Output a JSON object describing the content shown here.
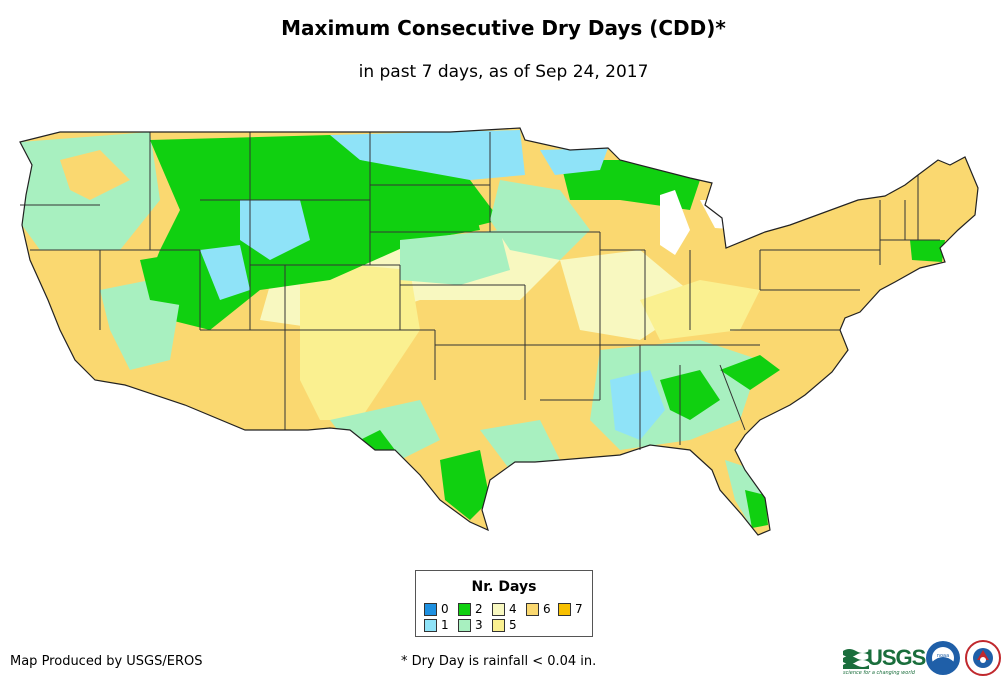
{
  "title": "Maximum Consecutive Dry Days (CDD)*",
  "subtitle": "in past 7 days, as of Sep 24, 2017",
  "legend": {
    "title": "Nr. Days",
    "items": [
      {
        "label": "0",
        "color": "#1e90e0"
      },
      {
        "label": "1",
        "color": "#8fe3f8"
      },
      {
        "label": "2",
        "color": "#10d010"
      },
      {
        "label": "3",
        "color": "#a8f0c0"
      },
      {
        "label": "4",
        "color": "#f8f8c0"
      },
      {
        "label": "5",
        "color": "#faf090"
      },
      {
        "label": "6",
        "color": "#fad870"
      },
      {
        "label": "7",
        "color": "#f8c000"
      }
    ]
  },
  "credit": "Map Produced by USGS/EROS",
  "footnote": "* Dry Day is rainfall < 0.04 in.",
  "logos": {
    "usgs": "USGS",
    "usgs_tagline": "science for a changing world",
    "noaa": "noaa",
    "nws": "NATIONAL WEATHER SERVICE"
  }
}
